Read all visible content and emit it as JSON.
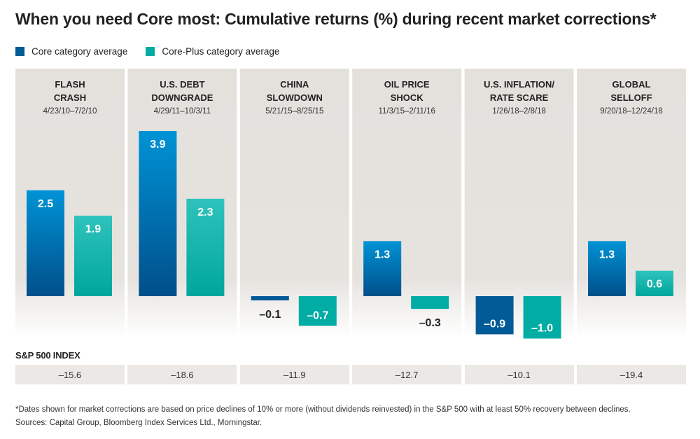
{
  "title": "When you need Core most: Cumulative returns (%) during recent market corrections*",
  "legend": [
    {
      "label": "Core category average",
      "color": "#005b97"
    },
    {
      "label": "Core-Plus category average",
      "color": "#00aca3"
    }
  ],
  "chart_data": {
    "type": "bar",
    "categories": [
      {
        "name_lines": [
          "FLASH",
          "CRASH"
        ],
        "dates": "4/23/10–7/2/10"
      },
      {
        "name_lines": [
          "U.S. DEBT",
          "DOWNGRADE"
        ],
        "dates": "4/29/11–10/3/11"
      },
      {
        "name_lines": [
          "CHINA",
          "SLOWDOWN"
        ],
        "dates": "5/21/15–8/25/15"
      },
      {
        "name_lines": [
          "OIL PRICE",
          "SHOCK"
        ],
        "dates": "11/3/15–2/11/16"
      },
      {
        "name_lines": [
          "U.S. INFLATION/",
          "RATE SCARE"
        ],
        "dates": "1/26/18–2/8/18"
      },
      {
        "name_lines": [
          "GLOBAL",
          "SELLOFF"
        ],
        "dates": "9/20/18–12/24/18"
      }
    ],
    "series": [
      {
        "name": "Core category average",
        "values": [
          2.5,
          3.9,
          -0.1,
          1.3,
          -0.9,
          1.3
        ],
        "labels": [
          "2.5",
          "3.9",
          "–0.1",
          "1.3",
          "–0.9",
          "1.3"
        ],
        "color": "#005b97"
      },
      {
        "name": "Core-Plus category average",
        "values": [
          1.9,
          2.3,
          -0.7,
          -0.3,
          -1.0,
          0.6
        ],
        "labels": [
          "1.9",
          "2.3",
          "–0.7",
          "–0.3",
          "–1.0",
          "0.6"
        ],
        "color": "#00aca3"
      }
    ],
    "ylim": [
      -1.0,
      4.0
    ]
  },
  "sp500": {
    "label": "S&P 500 INDEX",
    "values": [
      "–15.6",
      "–18.6",
      "–11.9",
      "–12.7",
      "–10.1",
      "–19.4"
    ]
  },
  "footnote": {
    "line1": "*Dates shown for market corrections are based on price declines of 10% or more (without dividends reinvested) in the S&P 500 with at least 50% recovery between declines.",
    "line2": "Sources: Capital Group, Bloomberg Index Services Ltd., Morningstar."
  }
}
